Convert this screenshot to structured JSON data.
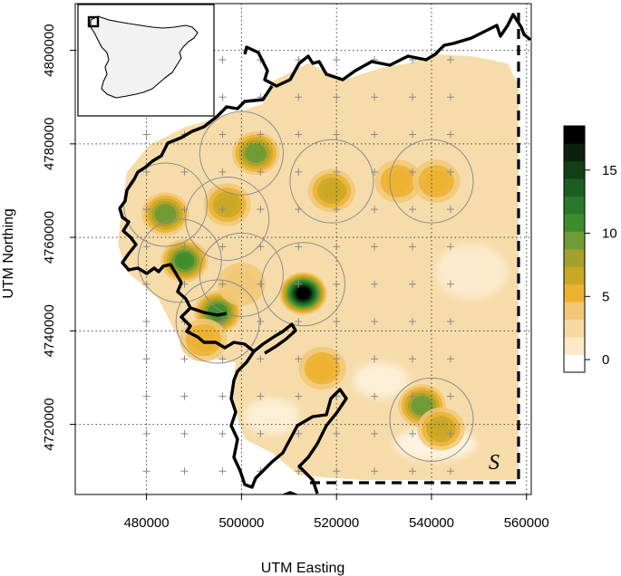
{
  "chart_data": {
    "type": "heatmap",
    "title": "",
    "xlabel": "UTM Easting",
    "ylabel": "UTM Northing",
    "xlim": [
      465000,
      561000
    ],
    "ylim": [
      4705000,
      4810000
    ],
    "x_ticks": [
      480000,
      500000,
      520000,
      540000,
      560000
    ],
    "y_ticks": [
      4720000,
      4740000,
      4760000,
      4780000,
      4800000
    ],
    "grid": true,
    "region_label": "S",
    "colorbar": {
      "ticks": [
        0,
        5,
        10,
        15
      ],
      "min": -1,
      "max": 18.5,
      "colors": [
        "#ffffff",
        "#fbe8c4",
        "#f7d9a0",
        "#f1c877",
        "#ecb22f",
        "#c9a826",
        "#a3a12b",
        "#6f9a36",
        "#3d8d2e",
        "#267a29",
        "#1c5e21",
        "#123f16",
        "#0a220c",
        "#000000"
      ]
    },
    "sampling_grid": {
      "x_start": 480000,
      "x_end": 548000,
      "y_start": 4702000,
      "y_end": 4800000,
      "step": 8000
    },
    "hotspots": [
      {
        "x": 513000,
        "y": 4748000,
        "value": 18
      },
      {
        "x": 488000,
        "y": 4755000,
        "value": 11
      },
      {
        "x": 495000,
        "y": 4744000,
        "value": 11
      },
      {
        "x": 484000,
        "y": 4765000,
        "value": 10
      },
      {
        "x": 503000,
        "y": 4778000,
        "value": 9
      },
      {
        "x": 497000,
        "y": 4767000,
        "value": 7
      },
      {
        "x": 538000,
        "y": 4724000,
        "value": 9
      },
      {
        "x": 519000,
        "y": 4770000,
        "value": 6
      },
      {
        "x": 542000,
        "y": 4719000,
        "value": 6
      },
      {
        "x": 517000,
        "y": 4732000,
        "value": 5
      },
      {
        "x": 533000,
        "y": 4772000,
        "value": 5
      },
      {
        "x": 541000,
        "y": 4772000,
        "value": 5
      },
      {
        "x": 492000,
        "y": 4738000,
        "value": 5
      },
      {
        "x": 500000,
        "y": 4750000,
        "value": 4
      }
    ],
    "circles": [
      {
        "x": 500000,
        "y": 4778000
      },
      {
        "x": 484000,
        "y": 4767000
      },
      {
        "x": 497000,
        "y": 4764000
      },
      {
        "x": 487000,
        "y": 4755000
      },
      {
        "x": 500000,
        "y": 4752000
      },
      {
        "x": 495000,
        "y": 4742000
      },
      {
        "x": 513000,
        "y": 4750000
      },
      {
        "x": 519000,
        "y": 4772000
      },
      {
        "x": 540000,
        "y": 4772000
      },
      {
        "x": 540000,
        "y": 4721000
      }
    ]
  }
}
